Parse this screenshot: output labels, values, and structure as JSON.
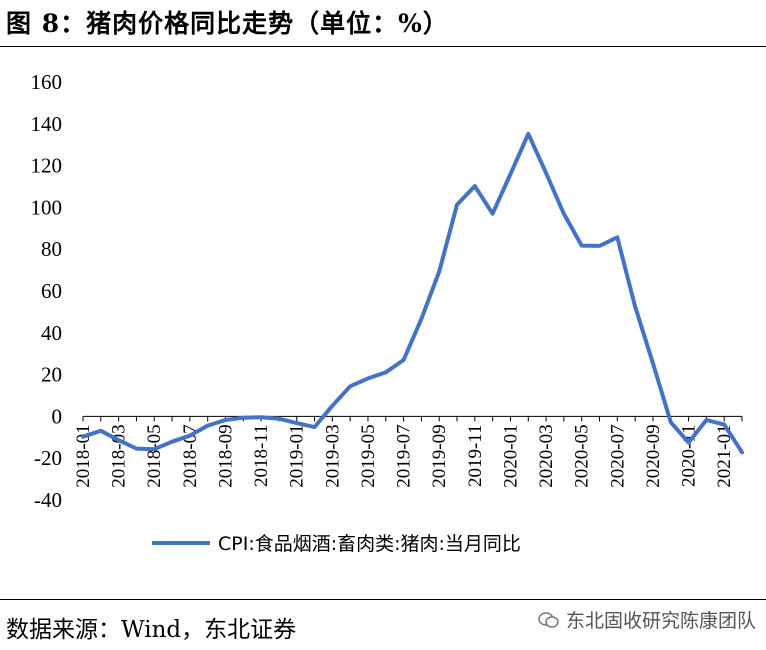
{
  "header": {
    "title": "图 8：猪肉价格同比走势（单位：%）"
  },
  "footer": {
    "source": "数据来源：Wind，东北证券",
    "watermark": "东北固收研究陈康团队"
  },
  "chart_data": {
    "type": "line",
    "title": "图 8：猪肉价格同比走势（单位：%）",
    "ylim": [
      -40,
      160
    ],
    "yticks": [
      -40,
      -20,
      0,
      20,
      40,
      60,
      80,
      100,
      120,
      140,
      160
    ],
    "xtick_labels": [
      "2018-01",
      "2018-03",
      "2018-05",
      "2018-07",
      "2018-09",
      "2018-11",
      "2019-01",
      "2019-03",
      "2019-05",
      "2019-07",
      "2019-09",
      "2019-11",
      "2020-01",
      "2020-03",
      "2020-05",
      "2020-07",
      "2020-09",
      "2020-11",
      "2021-01"
    ],
    "x": [
      "2018-01",
      "2018-02",
      "2018-03",
      "2018-04",
      "2018-05",
      "2018-06",
      "2018-07",
      "2018-08",
      "2018-09",
      "2018-10",
      "2018-11",
      "2018-12",
      "2019-01",
      "2019-02",
      "2019-03",
      "2019-04",
      "2019-05",
      "2019-06",
      "2019-07",
      "2019-08",
      "2019-09",
      "2019-10",
      "2019-11",
      "2019-12",
      "2020-01",
      "2020-02",
      "2020-03",
      "2020-04",
      "2020-05",
      "2020-06",
      "2020-07",
      "2020-08",
      "2020-09",
      "2020-10",
      "2020-11",
      "2020-12",
      "2021-01",
      "2021-02"
    ],
    "legend_position": "bottom",
    "grid": false,
    "series": [
      {
        "name": "CPI:食品烟酒:畜肉类:猪肉:当月同比",
        "color": "#4472C4",
        "values": [
          -9.7,
          -6.9,
          -11.4,
          -15.4,
          -15.7,
          -12.1,
          -9.2,
          -4.4,
          -1.7,
          -0.6,
          -0.4,
          -1.1,
          -3.2,
          -5.1,
          5.1,
          14.4,
          18.2,
          21.1,
          27.0,
          46.7,
          69.3,
          101.3,
          110.2,
          97.0,
          116.0,
          135.2,
          116.4,
          96.9,
          81.7,
          81.6,
          85.7,
          52.6,
          25.5,
          -2.8,
          -12.5,
          -1.7,
          -3.9,
          -17.2
        ]
      }
    ]
  }
}
